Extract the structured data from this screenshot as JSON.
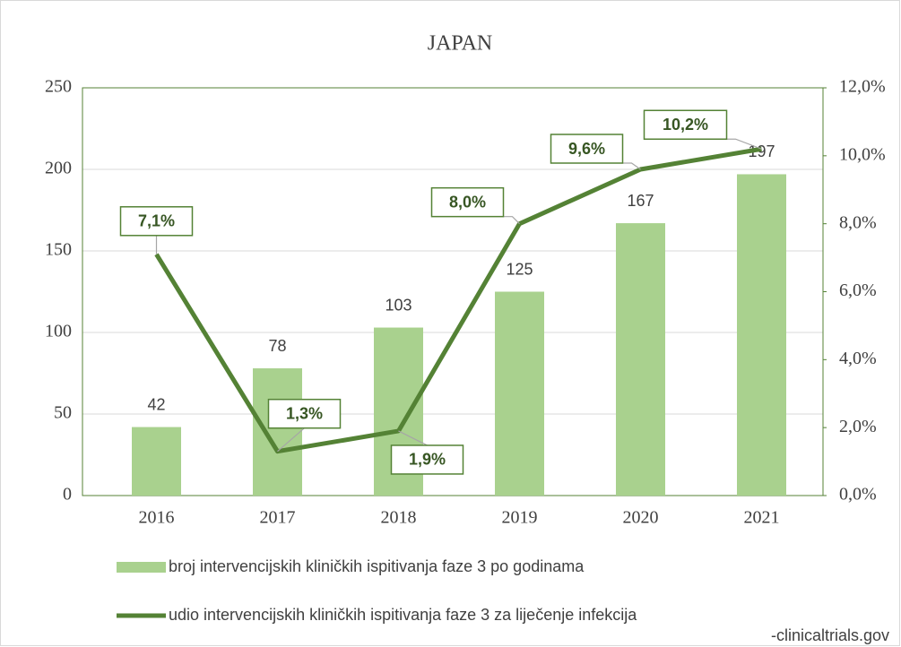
{
  "chart_data": {
    "type": "bar+line",
    "title": "JAPAN",
    "categories": [
      "2016",
      "2017",
      "2018",
      "2019",
      "2020",
      "2021"
    ],
    "series": [
      {
        "name": "broj intervencijskih kliničkih ispitivanja faze 3 po godinama",
        "type": "bar",
        "color": "#a9d18e",
        "values": [
          42,
          78,
          103,
          125,
          167,
          197
        ]
      },
      {
        "name": "udio intervencijskih kliničkih ispitivanja faze 3 za liječenje infekcija",
        "type": "line",
        "axis": "y2",
        "color": "#548235",
        "values": [
          7.1,
          1.3,
          1.9,
          8.0,
          9.6,
          10.2
        ],
        "value_labels": [
          "7,1%",
          "1,3%",
          "1,9%",
          "8,0%",
          "9,6%",
          "10,2%"
        ]
      }
    ],
    "ylim": [
      0,
      250
    ],
    "yticks": [
      0,
      50,
      100,
      150,
      200,
      250
    ],
    "y2lim": [
      0,
      12
    ],
    "y2ticks": [
      {
        "value": 0,
        "label": "0,0%"
      },
      {
        "value": 2,
        "label": "2,0%"
      },
      {
        "value": 4,
        "label": "4,0%"
      },
      {
        "value": 6,
        "label": "6,0%"
      },
      {
        "value": 8,
        "label": "8,0%"
      },
      {
        "value": 10,
        "label": "10,0%"
      },
      {
        "value": 12,
        "label": "12,0%"
      }
    ],
    "grid": true,
    "legend": "bottom",
    "annotations": [
      "-clinicaltrials.gov"
    ]
  }
}
